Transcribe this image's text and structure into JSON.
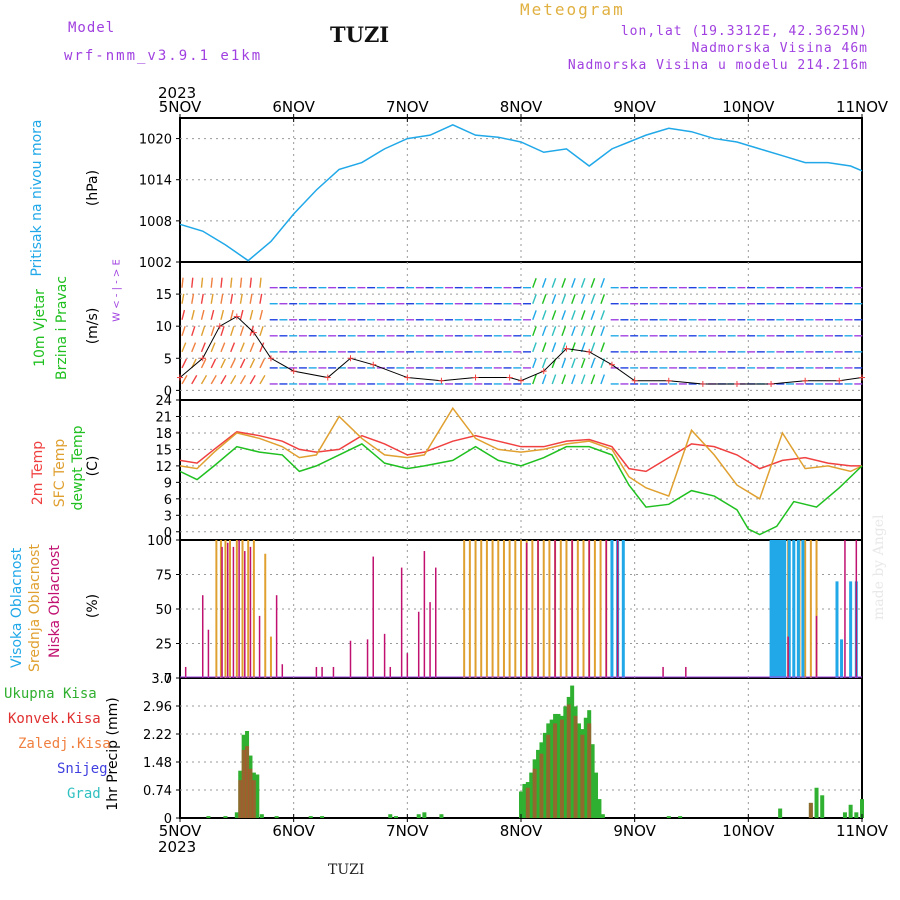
{
  "header": {
    "model_label": "Model",
    "model_name": "wrf-nmm_v3.9.1 e1km",
    "station": "TUZI",
    "meteogram": "Meteogram",
    "lonlat": "lon,lat (19.3312E, 42.3625N)",
    "altitude": "Nadmorska Visina 46m",
    "model_altitude": "Nadmorska Visina u modelu 214.216m",
    "year_top": "2023",
    "year_bottom": "2023",
    "footer_station": "TUZI",
    "watermark": "made by Angel"
  },
  "colors": {
    "pressure": "#20a8e8",
    "temp2m": "#f04040",
    "sfc": "#e0a030",
    "dewpt": "#20c020",
    "high_cloud": "#20a8e8",
    "mid_cloud": "#e0a030",
    "low_cloud": "#c01070",
    "precip_total": "#30b030",
    "precip_conv": "#e03030",
    "precip_frz": "#f08040",
    "snow": "#4040e0",
    "grad": "#30c0c0",
    "violet": "#a040e0"
  },
  "panel_labels": {
    "pressure": [
      "Pritisak na nivou mora",
      "(hPa)"
    ],
    "wind": [
      "10m Vjetar",
      "Brzina i Pravac",
      "(m/s)"
    ],
    "wind_compass": "W  < - | - >  E",
    "temp": [
      "2m Temp",
      "SFC Temp",
      "dewpt Temp",
      "(C)"
    ],
    "cloud": [
      "Visoka Oblacnost",
      "Srednja Oblacnost",
      "Niska Oblacnost",
      "(%)"
    ],
    "precip_legend": [
      "Ukupna Kisa",
      "Konvek.Kisa",
      "Zaledj.Kisa",
      "Snijeg",
      "Grad"
    ],
    "precip_unit": "1hr Precip (mm)"
  },
  "chart_data": [
    {
      "type": "line",
      "title": "Pritisak na nivou mora",
      "ylabel": "(hPa)",
      "x_categories": [
        "5NOV",
        "6NOV",
        "7NOV",
        "8NOV",
        "9NOV",
        "10NOV",
        "11NOV"
      ],
      "x_range_days": [
        0,
        6
      ],
      "ylim": [
        1002,
        1023
      ],
      "yticks": [
        "1002",
        "1008",
        "1014",
        "1020"
      ],
      "series": [
        {
          "name": "Pritisak na nivou mora",
          "x": [
            0,
            0.2,
            0.4,
            0.6,
            0.8,
            1.0,
            1.2,
            1.4,
            1.6,
            1.8,
            2.0,
            2.2,
            2.4,
            2.6,
            2.8,
            3.0,
            3.2,
            3.4,
            3.6,
            3.8,
            3.95,
            4.1,
            4.3,
            4.5,
            4.7,
            4.9,
            5.1,
            5.3,
            5.5,
            5.7,
            5.9,
            6.0
          ],
          "values": [
            1007.5,
            1006.5,
            1004.5,
            1002.2,
            1005,
            1009,
            1012.5,
            1015.5,
            1016.5,
            1018.5,
            1020.0,
            1020.5,
            1022.0,
            1020.5,
            1020.2,
            1019.5,
            1018.0,
            1018.5,
            1016.0,
            1018.5,
            1019.5,
            1020.5,
            1021.5,
            1021.0,
            1020.0,
            1019.5,
            1018.5,
            1017.5,
            1016.5,
            1016.5,
            1016.0,
            1015.3
          ]
        }
      ],
      "grid": true
    },
    {
      "type": "scatter",
      "title": "10m Vjetar Brzina i Pravac",
      "ylabel": "(m/s)",
      "ylim": [
        -1.5,
        20
      ],
      "yticks": [
        "0",
        "5",
        "10",
        "15"
      ],
      "series": [
        {
          "name": "wind speed",
          "x": [
            0,
            0.2,
            0.35,
            0.5,
            0.65,
            0.8,
            1.0,
            1.3,
            1.5,
            1.7,
            2.0,
            2.3,
            2.6,
            2.9,
            3.0,
            3.2,
            3.4,
            3.6,
            3.8,
            4.0,
            4.3,
            4.6,
            4.9,
            5.2,
            5.5,
            5.8,
            6.0
          ],
          "values": [
            2,
            5,
            10,
            11.5,
            9,
            5,
            3,
            2,
            5,
            4,
            2,
            1.5,
            2,
            2,
            1.5,
            3,
            6.5,
            6,
            4,
            1.5,
            1.5,
            1,
            1,
            1,
            1.5,
            1.5,
            2
          ]
        }
      ],
      "grid": true
    },
    {
      "type": "line",
      "title": "Temp",
      "ylabel": "(C)",
      "ylim": [
        -1.5,
        24
      ],
      "yticks": [
        "0",
        "3",
        "6",
        "9",
        "12",
        "15",
        "18",
        "21",
        "24"
      ],
      "series": [
        {
          "name": "2m Temp",
          "x": [
            0,
            0.15,
            0.3,
            0.5,
            0.7,
            0.9,
            1.05,
            1.2,
            1.4,
            1.6,
            1.8,
            2.0,
            2.15,
            2.4,
            2.6,
            2.8,
            3.0,
            3.2,
            3.4,
            3.6,
            3.8,
            3.95,
            4.1,
            4.3,
            4.5,
            4.7,
            4.9,
            5.1,
            5.3,
            5.5,
            5.7,
            5.9,
            6.0
          ],
          "values": [
            13,
            12.5,
            15,
            18.2,
            17.5,
            16.5,
            15,
            14.5,
            15,
            17.5,
            16,
            14,
            14.5,
            16.5,
            17.5,
            16.5,
            15.5,
            15.5,
            16.5,
            16.8,
            15.5,
            11.5,
            11.0,
            13.5,
            16.0,
            15.5,
            14.0,
            11.5,
            13.0,
            13.5,
            12.5,
            12.0,
            12.0
          ]
        },
        {
          "name": "SFC Temp",
          "x": [
            0,
            0.15,
            0.3,
            0.5,
            0.7,
            0.9,
            1.05,
            1.2,
            1.4,
            1.6,
            1.8,
            2.0,
            2.15,
            2.4,
            2.6,
            2.8,
            3.0,
            3.2,
            3.4,
            3.6,
            3.8,
            3.95,
            4.1,
            4.3,
            4.5,
            4.7,
            4.9,
            5.1,
            5.3,
            5.5,
            5.7,
            5.9,
            6.0
          ],
          "values": [
            12,
            11.5,
            14.5,
            18,
            17,
            15.5,
            13.5,
            14,
            21,
            17,
            14,
            13.5,
            14,
            22.5,
            17,
            15,
            14.5,
            15,
            16,
            16.5,
            15,
            10,
            8,
            6.5,
            18.5,
            14,
            8.5,
            6,
            18,
            11.5,
            12,
            11,
            12
          ]
        },
        {
          "name": "dewpt Temp",
          "x": [
            0,
            0.15,
            0.3,
            0.5,
            0.7,
            0.9,
            1.05,
            1.2,
            1.4,
            1.6,
            1.8,
            2.0,
            2.15,
            2.4,
            2.6,
            2.8,
            3.0,
            3.2,
            3.4,
            3.6,
            3.8,
            3.95,
            4.1,
            4.3,
            4.5,
            4.7,
            4.9,
            5.0,
            5.1,
            5.25,
            5.4,
            5.6,
            5.8,
            6.0
          ],
          "values": [
            11,
            9.5,
            12,
            15.5,
            14.5,
            14,
            11,
            12,
            14,
            16,
            12.5,
            11.5,
            12,
            13,
            15.5,
            13,
            12,
            13.5,
            15.5,
            15.5,
            14,
            8.5,
            4.5,
            5.0,
            7.5,
            6.5,
            4.0,
            0.5,
            -0.5,
            1.0,
            5.5,
            4.5,
            8.0,
            12.0
          ]
        }
      ],
      "grid": true
    },
    {
      "type": "bar",
      "title": "Oblacnost",
      "ylabel": "(%)",
      "ylim": [
        0,
        100
      ],
      "yticks": [
        "0",
        "25",
        "50",
        "75",
        "100"
      ],
      "series": [
        {
          "name": "Visoka Oblacnost",
          "x": [
            3.8,
            3.85,
            3.9,
            5.2,
            5.22,
            5.24,
            5.26,
            5.28,
            5.3,
            5.32,
            5.36,
            5.4,
            5.44,
            5.48,
            5.78,
            5.82,
            5.9,
            5.95
          ],
          "values": [
            100,
            100,
            100,
            100,
            100,
            100,
            100,
            100,
            100,
            100,
            100,
            100,
            100,
            100,
            70,
            28,
            70,
            70
          ]
        },
        {
          "name": "Srednja Oblacnost",
          "x": [
            0.32,
            0.36,
            0.4,
            0.44,
            0.5,
            0.55,
            0.6,
            0.65,
            0.75,
            0.8,
            2.5,
            2.55,
            2.6,
            2.65,
            2.7,
            2.75,
            2.8,
            2.85,
            2.9,
            2.95,
            3.0,
            3.05,
            3.1,
            3.15,
            3.2,
            3.25,
            3.3,
            3.35,
            3.4,
            3.45,
            3.5,
            3.55,
            3.6,
            3.65,
            3.7,
            3.75,
            3.8,
            3.85,
            3.9,
            5.2,
            5.25,
            5.3,
            5.35,
            5.4,
            5.45,
            5.5,
            5.55,
            5.6
          ],
          "values": [
            100,
            100,
            100,
            100,
            100,
            100,
            100,
            100,
            90,
            30,
            100,
            100,
            100,
            100,
            100,
            100,
            100,
            100,
            100,
            100,
            100,
            100,
            100,
            100,
            100,
            100,
            100,
            100,
            100,
            100,
            100,
            100,
            100,
            100,
            100,
            100,
            100,
            100,
            100,
            100,
            100,
            100,
            100,
            100,
            100,
            100,
            100,
            100
          ]
        },
        {
          "name": "Niska Oblacnost",
          "x": [
            0.05,
            0.2,
            0.25,
            0.37,
            0.42,
            0.47,
            0.52,
            0.57,
            0.62,
            0.7,
            0.85,
            0.9,
            1.2,
            1.25,
            1.35,
            1.5,
            1.65,
            1.7,
            1.8,
            1.85,
            1.95,
            2.0,
            2.1,
            2.15,
            2.2,
            2.25,
            3.05,
            3.15,
            3.3,
            3.45,
            3.6,
            3.75,
            3.85,
            4.25,
            4.45,
            5.35,
            5.6,
            5.85,
            5.95
          ],
          "values": [
            8,
            60,
            35,
            95,
            98,
            95,
            100,
            92,
            95,
            45,
            60,
            10,
            8,
            8,
            8,
            27,
            28,
            88,
            32,
            8,
            80,
            18,
            48,
            92,
            55,
            80,
            98,
            100,
            100,
            100,
            100,
            100,
            100,
            8,
            8,
            30,
            45,
            100,
            100
          ]
        }
      ],
      "grid": true
    },
    {
      "type": "bar",
      "title": "1hr Precip",
      "ylabel": "1hr Precip (mm)",
      "ylim": [
        0,
        3.7
      ],
      "yticks": [
        "0",
        "0.74",
        "1.48",
        "2.22",
        "2.96",
        "3.7"
      ],
      "series": [
        {
          "name": "Ukupna Kisa",
          "x": [
            0.25,
            0.4,
            0.5,
            0.53,
            0.56,
            0.59,
            0.62,
            0.65,
            0.68,
            0.72,
            0.85,
            1.15,
            1.25,
            1.85,
            1.9,
            2.1,
            2.15,
            2.3,
            3.0,
            3.03,
            3.06,
            3.09,
            3.12,
            3.15,
            3.18,
            3.21,
            3.24,
            3.27,
            3.3,
            3.33,
            3.36,
            3.39,
            3.42,
            3.45,
            3.48,
            3.51,
            3.54,
            3.57,
            3.6,
            3.63,
            3.66,
            3.69,
            3.72,
            4.3,
            4.4,
            5.28,
            5.55,
            5.6,
            5.65,
            5.85,
            5.9,
            5.95,
            6.0
          ],
          "values": [
            0.05,
            0.05,
            0.15,
            1.25,
            2.2,
            2.3,
            1.65,
            1.2,
            1.15,
            0.1,
            0.05,
            0.05,
            0.05,
            0.1,
            0.05,
            0.1,
            0.15,
            0.1,
            0.7,
            0.9,
            0.95,
            1.2,
            1.55,
            1.8,
            2.0,
            2.25,
            2.5,
            2.6,
            2.75,
            2.75,
            2.7,
            2.95,
            3.2,
            3.5,
            2.95,
            2.5,
            2.35,
            2.65,
            2.85,
            1.95,
            1.2,
            0.5,
            0.1,
            0.05,
            0.05,
            0.25,
            0.4,
            0.8,
            0.6,
            0.15,
            0.35,
            0.15,
            0.5
          ]
        },
        {
          "name": "Konvek.Kisa",
          "x": [
            0.53,
            0.56,
            0.59,
            0.62,
            0.65,
            3.06,
            3.12,
            3.18,
            3.24,
            3.3,
            3.36,
            3.42,
            3.48,
            3.54,
            3.6,
            5.55
          ],
          "values": [
            1.0,
            1.8,
            1.9,
            1.3,
            1.0,
            0.8,
            1.3,
            1.7,
            2.2,
            2.5,
            2.6,
            3.0,
            2.7,
            2.2,
            2.5,
            0.4
          ]
        }
      ],
      "grid": true
    }
  ]
}
